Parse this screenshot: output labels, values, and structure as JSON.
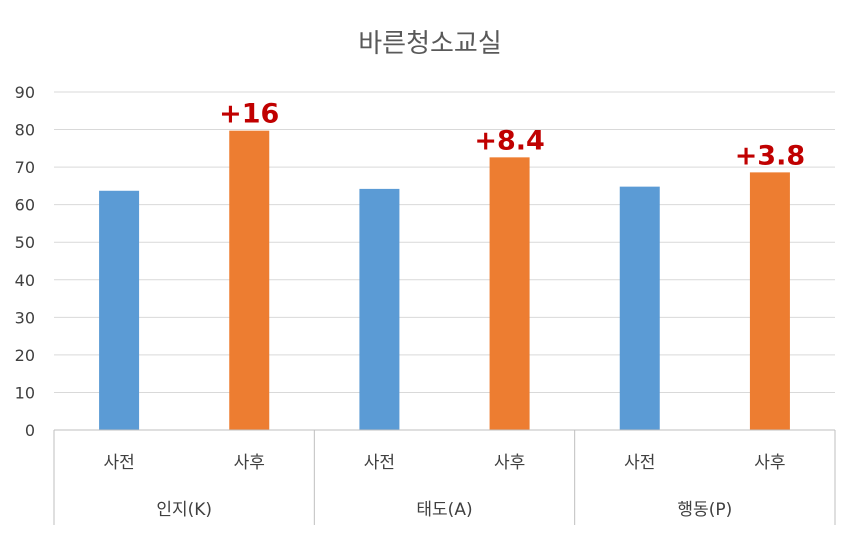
{
  "chart_data": {
    "type": "bar",
    "title": "바른청소교실",
    "xlabel": "",
    "ylabel": "",
    "ylim": [
      0,
      90
    ],
    "yticks": [
      0,
      10,
      20,
      30,
      40,
      50,
      60,
      70,
      80,
      90
    ],
    "grid": true,
    "legend": "none",
    "groups": [
      {
        "label": "인지(K)",
        "categories": [
          "사전",
          "사후"
        ],
        "values": [
          63.7,
          79.7
        ],
        "annotation": "+16"
      },
      {
        "label": "태도(A)",
        "categories": [
          "사전",
          "사후"
        ],
        "values": [
          64.2,
          72.6
        ],
        "annotation": "+8.4"
      },
      {
        "label": "행동(P)",
        "categories": [
          "사전",
          "사후"
        ],
        "values": [
          64.8,
          68.6
        ],
        "annotation": "+3.8"
      }
    ],
    "colors": {
      "pre": "#5b9bd5",
      "post": "#ed7d31",
      "annotation": "#c00000",
      "grid": "#d9d9d9",
      "axis": "#bfbfbf"
    }
  }
}
